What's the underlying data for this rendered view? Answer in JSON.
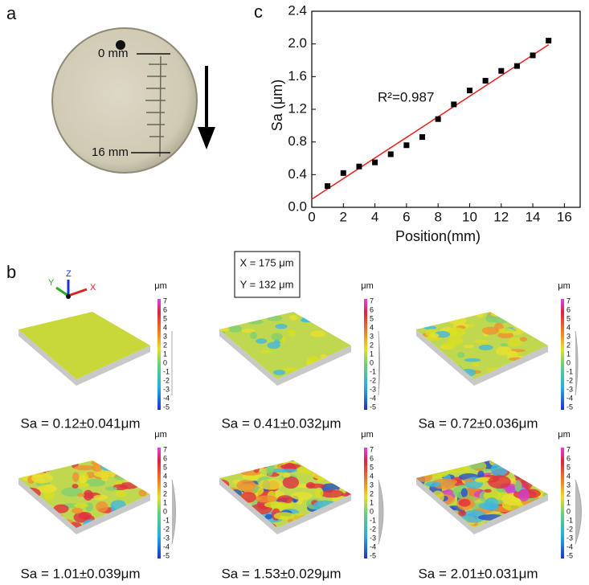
{
  "panel_a": {
    "label": "a",
    "marks": [
      "0 mm",
      "16 mm"
    ]
  },
  "panel_b": {
    "label": "b",
    "dimensions": [
      "X = 175 μm",
      "Y = 132 μm"
    ],
    "axes": [
      "X",
      "Y",
      "Z"
    ],
    "colorbar": {
      "unit": "μm",
      "ticks": [
        7,
        6,
        5,
        4,
        3,
        2,
        1,
        0,
        -1,
        -2,
        -3,
        -4,
        -5
      ]
    },
    "captions": [
      "Sa = 0.12±0.041μm",
      "Sa = 0.41±0.032μm",
      "Sa = 0.72±0.036μm",
      "Sa = 1.01±0.039μm",
      "Sa = 1.53±0.029μm",
      "Sa = 2.01±0.031μm"
    ]
  },
  "chart_data": {
    "type": "scatter",
    "title": "c",
    "x_label": "Position(mm)",
    "y_label": "Sa (μm)",
    "x": [
      1,
      2,
      3,
      4,
      5,
      6,
      7,
      8,
      9,
      10,
      11,
      12,
      13,
      14,
      15
    ],
    "values": [
      0.26,
      0.42,
      0.5,
      0.55,
      0.65,
      0.76,
      0.86,
      1.08,
      1.26,
      1.43,
      1.55,
      1.67,
      1.73,
      1.86,
      2.04
    ],
    "color": "#000000",
    "fit": {
      "x": [
        0,
        15
      ],
      "values": [
        0.1,
        1.99
      ],
      "color": "#e8201a"
    },
    "annotation": "R²=0.987",
    "xlim": [
      0,
      17
    ],
    "xticks": [
      0,
      2,
      4,
      6,
      8,
      10,
      12,
      14,
      16
    ],
    "ylim": [
      0,
      2.4
    ],
    "yticks": [
      {
        "value": 0,
        "label": "0.0"
      },
      0.4,
      0.8,
      1.2,
      1.6,
      {
        "value": 2,
        "label": "2.0"
      },
      2.4
    ]
  }
}
